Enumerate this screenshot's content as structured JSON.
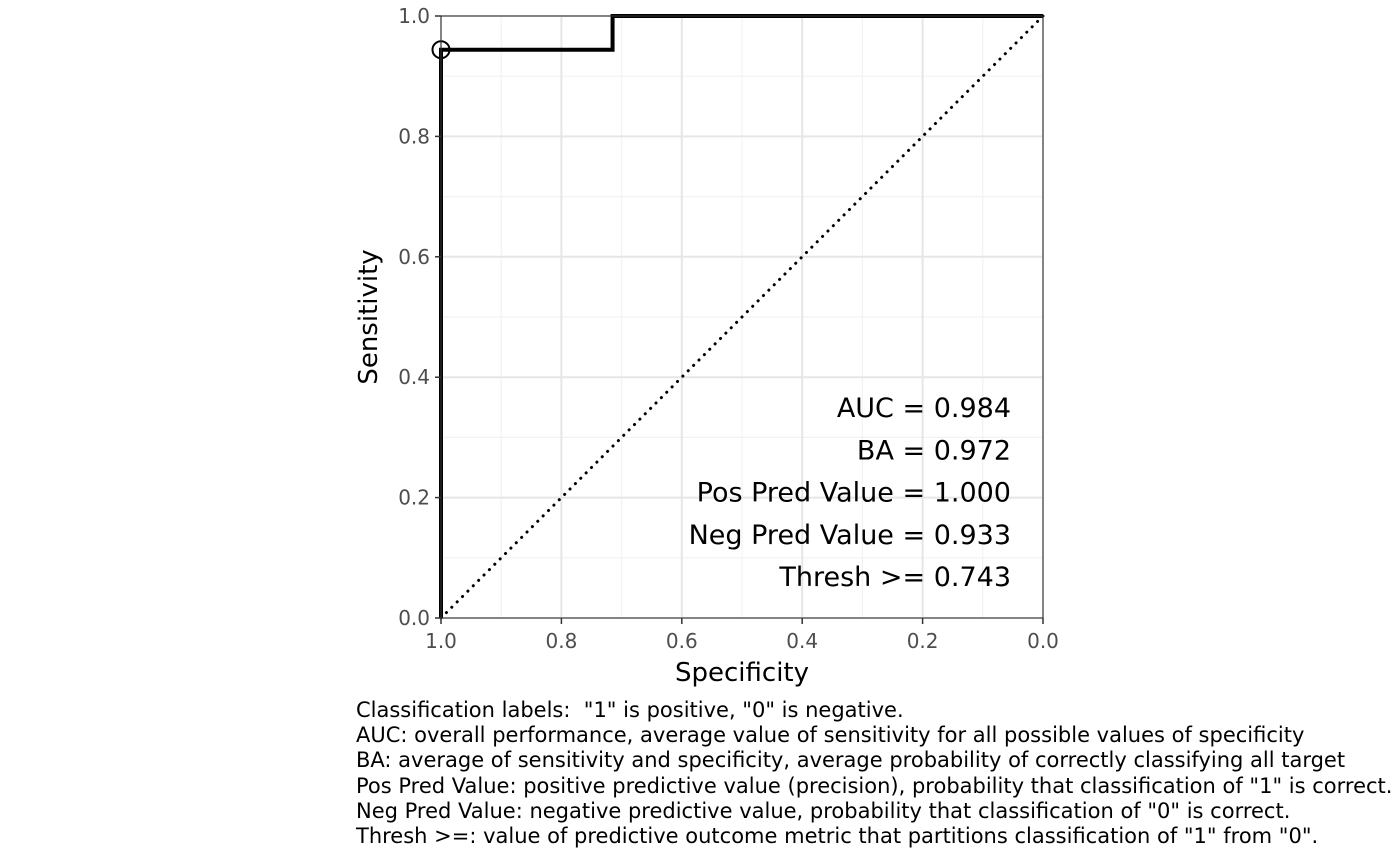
{
  "chart_data": {
    "type": "line",
    "xlabel": "Specificity",
    "ylabel": "Sensitivity",
    "xlim": [
      1.0,
      0.0
    ],
    "ylim": [
      0.0,
      1.0
    ],
    "x_reversed": true,
    "grid": true,
    "x_ticks": [
      "1.0",
      "0.8",
      "0.6",
      "0.4",
      "0.2",
      "0.0"
    ],
    "y_ticks": [
      "0.0",
      "0.2",
      "0.4",
      "0.6",
      "0.8",
      "1.0"
    ],
    "series": [
      {
        "style": "solid",
        "color": "#000000",
        "points": [
          {
            "specificity": 1.0,
            "sensitivity": 0.0
          },
          {
            "specificity": 1.0,
            "sensitivity": 0.944
          },
          {
            "specificity": 0.715,
            "sensitivity": 0.944
          },
          {
            "specificity": 0.715,
            "sensitivity": 1.0
          },
          {
            "specificity": 0.0,
            "sensitivity": 1.0
          }
        ]
      },
      {
        "style": "dotted",
        "color": "#000000",
        "points": [
          {
            "specificity": 1.0,
            "sensitivity": 0.0
          },
          {
            "specificity": 0.0,
            "sensitivity": 1.0
          }
        ]
      }
    ],
    "threshold_point": {
      "specificity": 1.0,
      "sensitivity": 0.944
    },
    "annotations": [
      "AUC = 0.984",
      "BA = 0.972",
      "Pos Pred Value = 1.000",
      "Neg Pred Value = 0.933",
      "Thresh >= 0.743"
    ]
  },
  "caption": {
    "lines": [
      "Classification labels:  \"1\" is positive, \"0\" is negative.",
      "AUC: overall performance, average value of sensitivity for all possible values of specificity",
      "BA: average of sensitivity and specificity, average probability of correctly classifying all target",
      "Pos Pred Value: positive predictive value (precision), probability that classification of \"1\" is correct.",
      "Neg Pred Value: negative predictive value, probability that classification of \"0\" is correct.",
      "Thresh >=: value of predictive outcome metric that partitions classification of \"1\" from \"0\"."
    ]
  }
}
